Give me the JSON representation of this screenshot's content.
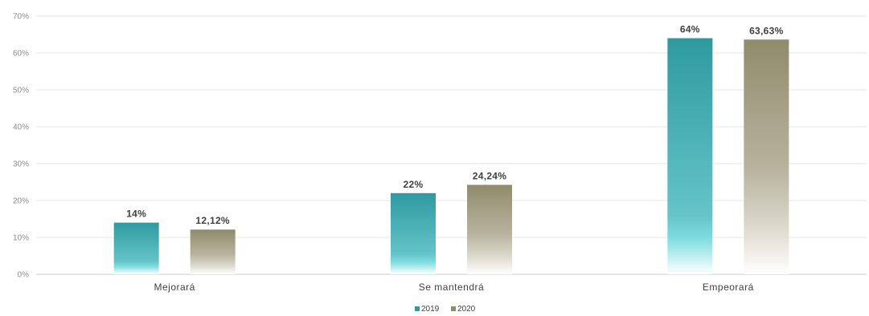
{
  "chart_data": {
    "type": "bar",
    "categories": [
      "Mejorará",
      "Se mantendrá",
      "Empeorará"
    ],
    "series": [
      {
        "name": "2019",
        "values": [
          14,
          22,
          64
        ],
        "labels": [
          "14%",
          "22%",
          "64%"
        ]
      },
      {
        "name": "2020",
        "values": [
          12.12,
          24.24,
          63.63
        ],
        "labels": [
          "12,12%",
          "24,24%",
          "63,63%"
        ]
      }
    ],
    "ylim": [
      0,
      70
    ],
    "yticks": [
      "0%",
      "10%",
      "20%",
      "30%",
      "40%",
      "50%",
      "60%",
      "70%"
    ],
    "grid": true,
    "legend_position": "bottom",
    "colors": {
      "2019_top": "#2e9aa0",
      "2019_bottom": "#6fd8dc",
      "2020_top": "#918b6c",
      "2020_bottom": "#ffffff",
      "grid": "#e6e6e6",
      "axis": "#c8c8c8"
    }
  }
}
